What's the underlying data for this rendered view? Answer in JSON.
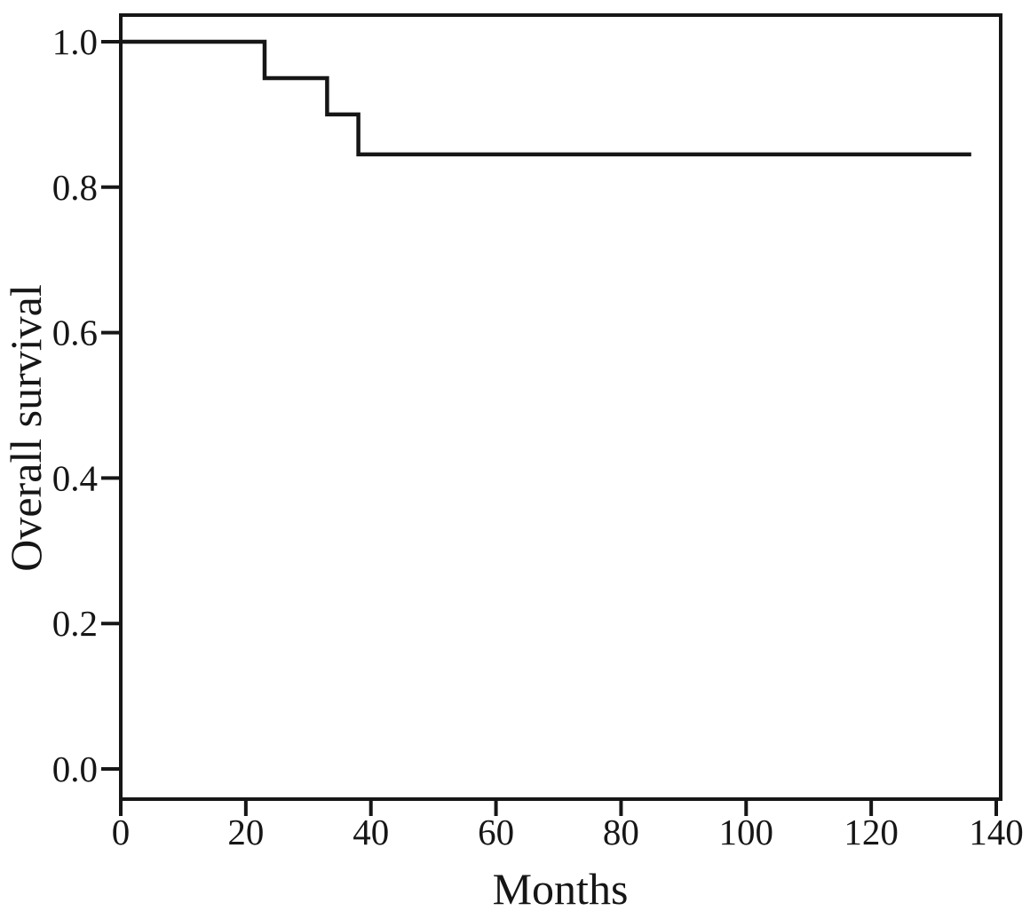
{
  "colors": {
    "background": "#ffffff",
    "line": "#161616"
  },
  "chart_data": {
    "type": "line",
    "subtype": "kaplan-meier-step",
    "title": "",
    "xlabel": "Months",
    "ylabel": "Overall survival",
    "xlim": [
      0,
      140
    ],
    "ylim": [
      0.0,
      1.0
    ],
    "x_ticks": [
      "0",
      "20",
      "40",
      "60",
      "80",
      "100",
      "120",
      "140"
    ],
    "y_ticks": [
      "0.0",
      "0.2",
      "0.4",
      "0.6",
      "0.8",
      "1.0"
    ],
    "grid": false,
    "legend_position": "none",
    "frame": true,
    "series": [
      {
        "name": "Overall survival",
        "step_events": [
          {
            "month": 23,
            "survival_after": 0.95
          },
          {
            "month": 33,
            "survival_after": 0.9
          },
          {
            "month": 38,
            "survival_after": 0.845
          }
        ],
        "points": [
          [
            0,
            1.0
          ],
          [
            23,
            1.0
          ],
          [
            23,
            0.95
          ],
          [
            33,
            0.95
          ],
          [
            33,
            0.9
          ],
          [
            38,
            0.9
          ],
          [
            38,
            0.845
          ],
          [
            136,
            0.845
          ]
        ]
      }
    ]
  }
}
